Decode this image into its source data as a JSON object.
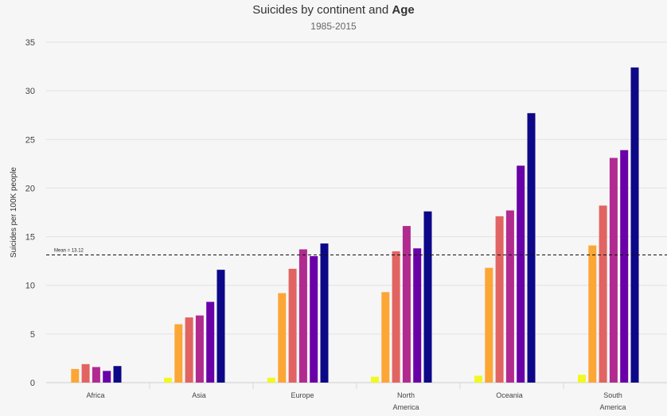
{
  "chart_data": {
    "type": "bar",
    "title": "Suicides by continent and",
    "title_bold": "Age",
    "subtitle": "1985-2015",
    "xlabel": "",
    "ylabel": "Suicides per 100K people",
    "ylim": [
      0,
      35
    ],
    "yticks": [
      0,
      5,
      10,
      15,
      20,
      25,
      30,
      35
    ],
    "grid": true,
    "legend": "none",
    "categories": [
      [
        "Africa"
      ],
      [
        "Asia"
      ],
      [
        "Europe"
      ],
      [
        "North",
        "America"
      ],
      [
        "Oceania"
      ],
      [
        "South",
        "America"
      ]
    ],
    "series": [
      {
        "color": "#f0f921",
        "values": [
          0,
          0.5,
          0.5,
          0.6,
          0.7,
          0.8
        ]
      },
      {
        "color": "#fca636",
        "values": [
          1.4,
          6.0,
          9.2,
          9.3,
          11.8,
          14.1
        ]
      },
      {
        "color": "#e16462",
        "values": [
          1.9,
          6.7,
          11.7,
          13.5,
          17.1,
          18.2
        ]
      },
      {
        "color": "#b12a90",
        "values": [
          1.6,
          6.9,
          13.7,
          16.1,
          17.7,
          23.1
        ]
      },
      {
        "color": "#6a00a8",
        "values": [
          1.2,
          8.3,
          13.0,
          13.8,
          22.3,
          23.9
        ]
      },
      {
        "color": "#0d0887",
        "values": [
          1.7,
          11.6,
          14.3,
          17.6,
          27.7,
          32.4
        ]
      }
    ],
    "mean": {
      "value": 13.12,
      "label": "Mean = 13.12"
    }
  }
}
